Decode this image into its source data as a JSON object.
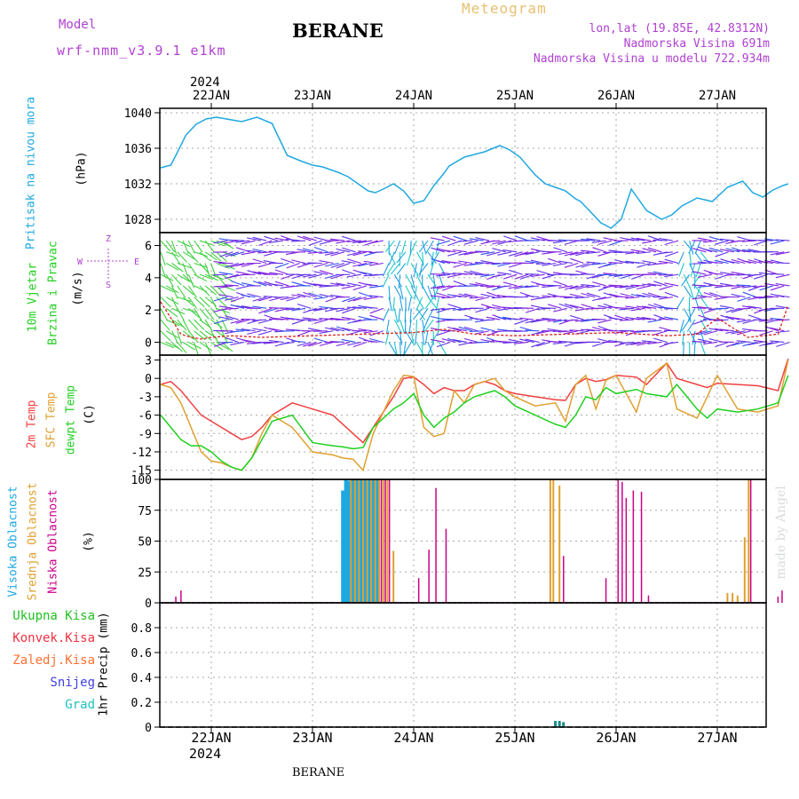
{
  "header": {
    "model_label": "Model",
    "model_name": "wrf-nmm_v3.9.1 e1km",
    "station": "BERANE",
    "meteogram_label": "Meteogram",
    "lonlat": "lon,lat (19.85E, 42.8312N)",
    "altitude": "Nadmorska Visina 691m",
    "model_altitude": "Nadmorska Visina u modelu 722.934m"
  },
  "colors": {
    "pressure": "#1fa8e0",
    "temp2m": "#f04040",
    "sfc_temp": "#e0a030",
    "dewpoint": "#20d020",
    "high_cloud": "#1fa8e0",
    "mid_cloud": "#e0a030",
    "low_cloud": "#cc0088",
    "rain_total": "#20c020",
    "rain_conv": "#f03040",
    "rain_frozen": "#ff7030",
    "snow": "#4040e0",
    "hail": "#20c0c0"
  },
  "time_axis": {
    "top_year": "2024",
    "bottom_year": "2024",
    "days": [
      "22JAN",
      "23JAN",
      "24JAN",
      "25JAN",
      "26JAN",
      "27JAN"
    ],
    "footer_station": "BERANE"
  },
  "watermark": "made by Angel",
  "chart_data": [
    {
      "type": "line",
      "panel": "pressure",
      "ylabel_title": "Pritisak na nivou mora",
      "ylabel_unit": "(hPa)",
      "ylim": [
        1026.5,
        1040.5
      ],
      "yticks": [
        "1040",
        "1036",
        "1032",
        "1028"
      ],
      "x_unit": "day offset from 22JAN 00UTC",
      "grid": true,
      "series": [
        {
          "values_x": [
            -0.5,
            -0.4,
            -0.35,
            -0.25,
            -0.15,
            -0.05,
            0.05,
            0.2,
            0.3,
            0.45,
            0.6,
            0.75,
            0.9,
            1.0,
            1.1,
            1.25,
            1.35,
            1.45,
            1.55,
            1.62,
            1.7,
            1.8,
            1.9,
            2.0,
            2.1,
            2.2,
            2.3,
            2.35,
            2.5,
            2.6,
            2.7,
            2.85,
            2.95,
            3.05,
            3.2,
            3.3,
            3.4,
            3.5,
            3.6,
            3.65,
            3.75,
            3.85,
            3.95,
            4.05,
            4.15,
            4.3,
            4.45,
            4.55,
            4.65,
            4.8,
            4.95,
            5.1,
            5.25,
            5.35,
            5.45,
            5.55,
            5.65,
            5.7
          ],
          "values_y": [
            1033.8,
            1034.1,
            1035.2,
            1037.5,
            1038.7,
            1039.3,
            1039.5,
            1039.2,
            1039.0,
            1039.5,
            1038.8,
            1035.2,
            1034.5,
            1034.1,
            1033.9,
            1033.3,
            1032.8,
            1032.0,
            1031.2,
            1031.0,
            1031.4,
            1032.0,
            1031.2,
            1029.8,
            1030.1,
            1031.8,
            1033.2,
            1034.0,
            1035.0,
            1035.3,
            1035.6,
            1036.3,
            1035.8,
            1035.0,
            1033.0,
            1032.0,
            1031.6,
            1031.2,
            1030.3,
            1030.0,
            1028.8,
            1027.6,
            1027.0,
            1028.0,
            1031.4,
            1029.0,
            1028.0,
            1028.5,
            1029.5,
            1030.4,
            1030.0,
            1031.6,
            1032.3,
            1031.0,
            1030.5,
            1031.3,
            1031.8,
            1032.0
          ]
        }
      ]
    },
    {
      "type": "line",
      "panel": "wind",
      "ylabel_title1": "10m Vjetar",
      "ylabel_title2": "Brzina i Pravac",
      "ylabel_unit": "(m/s)",
      "compass": {
        "n": "Z",
        "w": "W",
        "e": "E",
        "s": "S"
      },
      "ylim": [
        -0.8,
        6.8
      ],
      "yticks": [
        "6",
        "4",
        "2",
        "0"
      ],
      "grid": true,
      "series": [
        {
          "name": "wind_speed",
          "values_x": [
            -0.5,
            -0.4,
            -0.3,
            -0.2,
            -0.1,
            0.0,
            0.2,
            0.5,
            1.0,
            1.5,
            2.0,
            2.3,
            2.6,
            3.0,
            3.5,
            4.0,
            4.5,
            4.8,
            5.0,
            5.3,
            5.6,
            5.7
          ],
          "values_y": [
            2.5,
            1.5,
            0.5,
            0.3,
            0.2,
            0.3,
            0.4,
            0.3,
            0.4,
            0.5,
            0.6,
            0.8,
            0.5,
            0.4,
            0.5,
            0.6,
            0.4,
            0.5,
            1.5,
            0.3,
            0.5,
            2.3
          ]
        }
      ]
    },
    {
      "type": "line",
      "panel": "temperature",
      "ylabel_title1": "2m Temp",
      "ylabel_title2": "SFC Temp",
      "ylabel_title3": "dewpt Temp",
      "ylabel_unit": "(C)",
      "ylim": [
        -16.5,
        3.8
      ],
      "yticks": [
        "3",
        "0",
        "-3",
        "-6",
        "-9",
        "-12",
        "-15"
      ],
      "grid": true,
      "series": [
        {
          "name": "2m Temp",
          "values_x": [
            -0.5,
            -0.4,
            -0.3,
            -0.2,
            -0.1,
            0.0,
            0.1,
            0.2,
            0.3,
            0.4,
            0.5,
            0.6,
            0.8,
            1.0,
            1.2,
            1.3,
            1.4,
            1.5,
            1.6,
            1.8,
            1.9,
            2.0,
            2.1,
            2.2,
            2.3,
            2.4,
            2.5,
            2.6,
            2.7,
            2.8,
            2.9,
            3.0,
            3.2,
            3.4,
            3.5,
            3.6,
            3.7,
            3.8,
            3.9,
            4.0,
            4.2,
            4.3,
            4.5,
            4.6,
            4.8,
            4.9,
            5.0,
            5.2,
            5.4,
            5.6,
            5.7
          ],
          "values_y": [
            -1,
            -0.5,
            -2,
            -4,
            -6,
            -7,
            -8,
            -9,
            -10,
            -9.5,
            -8,
            -6,
            -4,
            -5,
            -6,
            -7.5,
            -9,
            -10.5,
            -8,
            -3,
            0,
            0.2,
            -1,
            -2.5,
            -1.5,
            -2,
            -2,
            -1,
            -0.5,
            -1,
            -2,
            -2.5,
            -3,
            -3.5,
            -3.6,
            -1,
            0,
            -0.5,
            -0.2,
            0.5,
            0.2,
            -1,
            2.5,
            0,
            -1,
            -1.5,
            -0.8,
            -1,
            -1.2,
            -2,
            3.2
          ]
        },
        {
          "name": "SFC Temp",
          "values_x": [
            -0.5,
            -0.4,
            -0.3,
            -0.2,
            -0.1,
            0.0,
            0.1,
            0.2,
            0.3,
            0.4,
            0.5,
            0.6,
            0.8,
            1.0,
            1.2,
            1.3,
            1.4,
            1.5,
            1.6,
            1.8,
            1.9,
            2.0,
            2.1,
            2.2,
            2.3,
            2.4,
            2.5,
            2.6,
            2.7,
            2.8,
            2.9,
            3.0,
            3.2,
            3.4,
            3.5,
            3.6,
            3.7,
            3.8,
            3.9,
            4.0,
            4.2,
            4.3,
            4.5,
            4.6,
            4.8,
            4.9,
            5.0,
            5.2,
            5.4,
            5.6,
            5.7
          ],
          "values_y": [
            -1,
            -1.5,
            -4,
            -8,
            -12,
            -13.5,
            -13.8,
            -14.5,
            -15,
            -13,
            -9,
            -6,
            -8,
            -12,
            -12.5,
            -13,
            -13.2,
            -15,
            -9,
            -2,
            0.5,
            0.3,
            -8,
            -9.5,
            -9,
            -2,
            -4,
            -1,
            -0.5,
            0,
            -2,
            -3,
            -4.5,
            -4,
            -7,
            -1,
            0.5,
            -5,
            -0.3,
            0.5,
            -5.5,
            0,
            2.5,
            -5,
            -6.5,
            -3,
            0.5,
            -5,
            -5.5,
            -4.5,
            3
          ]
        },
        {
          "name": "dewpt Temp",
          "values_x": [
            -0.5,
            -0.4,
            -0.3,
            -0.2,
            -0.1,
            0.0,
            0.1,
            0.2,
            0.3,
            0.4,
            0.5,
            0.6,
            0.8,
            1.0,
            1.2,
            1.3,
            1.4,
            1.5,
            1.6,
            1.8,
            1.9,
            2.0,
            2.1,
            2.2,
            2.3,
            2.4,
            2.5,
            2.6,
            2.7,
            2.8,
            2.9,
            3.0,
            3.2,
            3.4,
            3.5,
            3.6,
            3.7,
            3.8,
            3.9,
            4.0,
            4.2,
            4.3,
            4.5,
            4.6,
            4.8,
            4.9,
            5.0,
            5.2,
            5.4,
            5.6,
            5.7
          ],
          "values_y": [
            -6,
            -8,
            -10,
            -11,
            -11,
            -12,
            -13.5,
            -14.5,
            -15,
            -13,
            -10,
            -7,
            -6,
            -10.5,
            -11,
            -11.2,
            -11.5,
            -11.3,
            -8,
            -5,
            -4,
            -2.5,
            -6,
            -8,
            -6.5,
            -5.5,
            -4,
            -3,
            -2.5,
            -2,
            -3,
            -4.5,
            -6,
            -7.5,
            -8,
            -6,
            -3,
            -3.5,
            -1.5,
            -2.5,
            -1.8,
            -2.5,
            -3,
            -1,
            -5,
            -6.5,
            -5,
            -5.5,
            -5,
            -4,
            0.5
          ]
        }
      ]
    },
    {
      "type": "bar",
      "panel": "clouds",
      "ylabel_title1": "Visoka Oblacnost",
      "ylabel_title2": "Srednja Oblacnost",
      "ylabel_title3": "Niska Oblacnost",
      "ylabel_unit": "(%)",
      "ylim": [
        0,
        100
      ],
      "yticks": [
        "100",
        "75",
        "50",
        "25",
        "0"
      ],
      "grid": true,
      "series": [
        {
          "name": "Visoka",
          "x": [
            1.3,
            1.33,
            1.36,
            1.4,
            1.44,
            1.48,
            1.52,
            1.56,
            1.6,
            1.64
          ],
          "values": [
            91,
            100,
            99,
            100,
            100,
            100,
            100,
            100,
            100,
            100
          ]
        },
        {
          "name": "Srednja",
          "x": [
            1.38,
            1.42,
            1.46,
            1.5,
            1.54,
            1.58,
            1.62,
            1.66,
            1.7,
            1.74,
            1.8,
            3.35,
            3.38,
            3.44,
            5.1,
            5.15,
            5.2,
            5.27,
            5.31
          ],
          "values": [
            100,
            100,
            100,
            100,
            100,
            100,
            100,
            100,
            100,
            100,
            42,
            100,
            100,
            95,
            8,
            8,
            6,
            53,
            100
          ]
        },
        {
          "name": "Niska",
          "x": [
            -0.35,
            -0.3,
            1.68,
            1.72,
            1.76,
            2.05,
            2.15,
            2.22,
            2.32,
            3.48,
            3.9,
            4.02,
            4.06,
            4.1,
            4.17,
            4.25,
            4.32,
            5.33,
            5.6,
            5.64
          ],
          "values": [
            5,
            10,
            100,
            100,
            100,
            20,
            43,
            93,
            60,
            38,
            20,
            100,
            98,
            85,
            91,
            90,
            6,
            100,
            5,
            10
          ]
        }
      ]
    },
    {
      "type": "bar",
      "panel": "precip",
      "legend": [
        "Ukupna Kisa",
        "Konvek.Kisa",
        "Zaledj.Kisa",
        "Snijeg",
        "Grad"
      ],
      "ylabel_unit": "1hr Precip (mm)",
      "ylim": [
        0,
        1.0
      ],
      "yticks": [
        "0.8",
        "0.6",
        "0.4",
        "0.2",
        "0"
      ],
      "grid": true,
      "series": [
        {
          "name": "Ukupna Kisa",
          "x": [
            3.4,
            3.44,
            3.48
          ],
          "values": [
            0.05,
            0.05,
            0.04
          ]
        }
      ]
    }
  ]
}
